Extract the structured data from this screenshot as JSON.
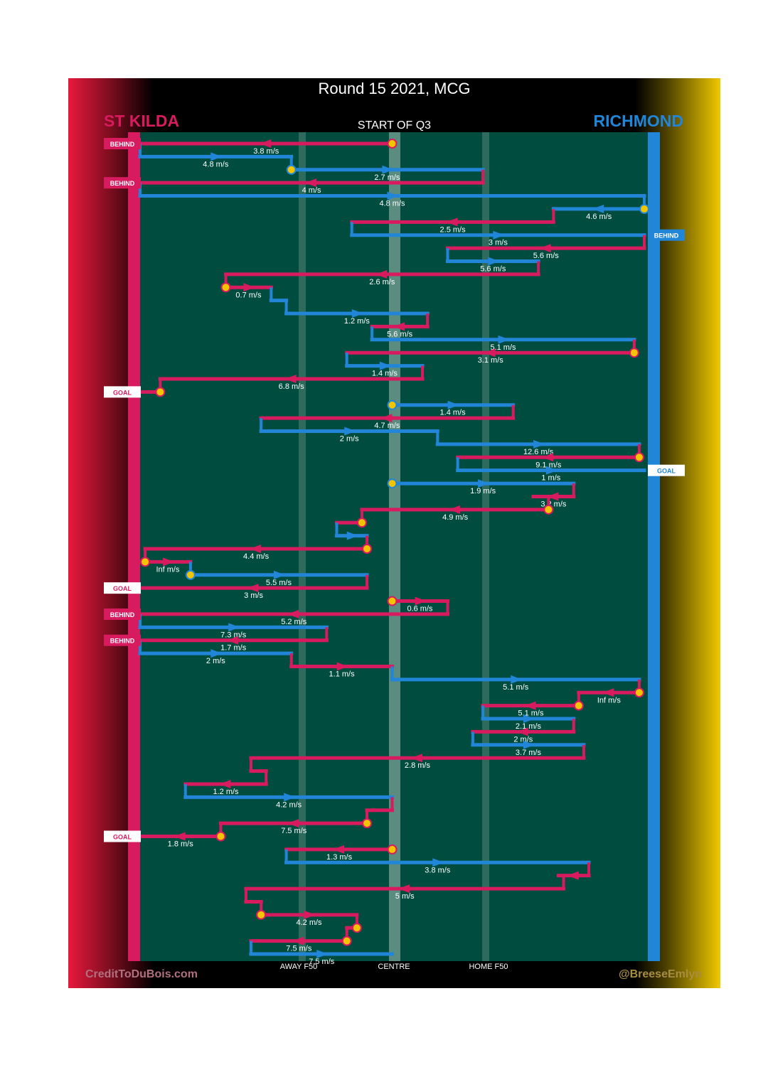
{
  "header": {
    "title": "Round 15 2021, MCG",
    "subtitle": "START OF Q3",
    "home_team": "ST KILDA",
    "away_team": "RICHMOND"
  },
  "footer": {
    "credit_left": "CreditToDuBois.com",
    "credit_right": "@BreeseEmlyn"
  },
  "axis_ticks": {
    "away_f50": "AWAY F50",
    "centre": "CENTRE",
    "home_f50": "HOME F50"
  },
  "colors": {
    "st_kilda": "#d81b5f",
    "richmond": "#2185d8",
    "field": "#004d40",
    "marker": "#f2c500"
  },
  "chart_data": {
    "type": "line",
    "description_note": "",
    "x_axis_ticks": [
      "AWAY F50",
      "CENTRE",
      "HOME F50"
    ],
    "series": [
      {
        "name": "ST KILDA",
        "color": "#d81b5f"
      },
      {
        "name": "RICHMOND",
        "color": "#2185d8"
      }
    ],
    "segments": [
      {
        "team": "S",
        "x1": 0.5,
        "x2": 0.0,
        "speed": "3.8 m/s",
        "start_marker": true
      },
      {
        "team": "R",
        "x1": 0.0,
        "x2": 0.3,
        "speed": "4.8 m/s"
      },
      {
        "team": "R",
        "x1": 0.3,
        "x2": 0.68,
        "speed": "2.7 m/s",
        "start_marker": true
      },
      {
        "team": "S",
        "x1": 0.68,
        "x2": 0.0,
        "speed": "4 m/s"
      },
      {
        "team": "R",
        "x1": 0.0,
        "x2": 1.0,
        "speed": "4.8 m/s"
      },
      {
        "team": "R",
        "x1": 1.0,
        "x2": 0.82,
        "speed": "4.6 m/s",
        "start_marker": true
      },
      {
        "team": "S",
        "x1": 0.82,
        "x2": 0.42,
        "speed": "2.5 m/s"
      },
      {
        "team": "R",
        "x1": 0.42,
        "x2": 1.0,
        "speed": "3 m/s"
      },
      {
        "team": "S",
        "x1": 1.0,
        "x2": 0.61,
        "speed": "5.6 m/s"
      },
      {
        "team": "R",
        "x1": 0.61,
        "x2": 0.79,
        "speed": "5.6 m/s"
      },
      {
        "team": "S",
        "x1": 0.79,
        "x2": 0.17,
        "speed": "2.6 m/s"
      },
      {
        "team": "S",
        "x1": 0.17,
        "x2": 0.26,
        "speed": "0.7 m/s",
        "start_marker": true
      },
      {
        "team": "R",
        "x1": 0.26,
        "x2": 0.29,
        "speed": ""
      },
      {
        "team": "R",
        "x1": 0.29,
        "x2": 0.57,
        "speed": "1.2 m/s"
      },
      {
        "team": "S",
        "x1": 0.57,
        "x2": 0.46,
        "speed": "5.6 m/s"
      },
      {
        "team": "R",
        "x1": 0.46,
        "x2": 0.98,
        "speed": "5.1 m/s"
      },
      {
        "team": "S",
        "x1": 0.98,
        "x2": 0.41,
        "speed": "3.1 m/s",
        "start_marker": true
      },
      {
        "team": "R",
        "x1": 0.41,
        "x2": 0.56,
        "speed": "1.4 m/s"
      },
      {
        "team": "S",
        "x1": 0.56,
        "x2": 0.04,
        "speed": "6.8 m/s"
      },
      {
        "team": "S",
        "x1": 0.04,
        "x2": 0.0,
        "speed": "",
        "start_marker": true
      },
      {
        "team": "R",
        "x1": 0.5,
        "x2": 0.74,
        "speed": "1.4 m/s",
        "start_marker": true
      },
      {
        "team": "S",
        "x1": 0.74,
        "x2": 0.24,
        "speed": "4.7 m/s"
      },
      {
        "team": "R",
        "x1": 0.24,
        "x2": 0.59,
        "speed": "2 m/s"
      },
      {
        "team": "R",
        "x1": 0.59,
        "x2": 0.99,
        "speed": "12.6 m/s"
      },
      {
        "team": "S",
        "x1": 0.99,
        "x2": 0.63,
        "speed": "9.1 m/s",
        "start_marker": true
      },
      {
        "team": "R",
        "x1": 0.63,
        "x2": 1.0,
        "speed": "1 m/s"
      },
      {
        "team": "R",
        "x1": 0.5,
        "x2": 0.86,
        "speed": "1.9 m/s",
        "start_marker": true
      },
      {
        "team": "S",
        "x1": 0.86,
        "x2": 0.78,
        "speed": "3.2 m/s"
      },
      {
        "team": "S",
        "x1": 0.81,
        "x2": 0.44,
        "speed": "4.9 m/s",
        "start_marker": true
      },
      {
        "team": "S",
        "x1": 0.44,
        "x2": 0.39,
        "speed": "",
        "start_marker": true
      },
      {
        "team": "R",
        "x1": 0.39,
        "x2": 0.45,
        "speed": ""
      },
      {
        "team": "S",
        "x1": 0.45,
        "x2": 0.01,
        "speed": "4.4 m/s",
        "start_marker": true
      },
      {
        "team": "S",
        "x1": 0.01,
        "x2": 0.1,
        "speed": "Inf m/s",
        "start_marker": true
      },
      {
        "team": "R",
        "x1": 0.1,
        "x2": 0.45,
        "speed": "5.5 m/s",
        "start_marker": true
      },
      {
        "team": "S",
        "x1": 0.45,
        "x2": 0.0,
        "speed": "3 m/s"
      },
      {
        "team": "S",
        "x1": 0.5,
        "x2": 0.61,
        "speed": "0.6 m/s",
        "start_marker": true
      },
      {
        "team": "S",
        "x1": 0.61,
        "x2": 0.0,
        "speed": "5.2 m/s"
      },
      {
        "team": "R",
        "x1": 0.0,
        "x2": 0.37,
        "speed": "7.3 m/s"
      },
      {
        "team": "S",
        "x1": 0.37,
        "x2": 0.0,
        "speed": "1.7 m/s"
      },
      {
        "team": "R",
        "x1": 0.0,
        "x2": 0.3,
        "speed": "2 m/s"
      },
      {
        "team": "S",
        "x1": 0.3,
        "x2": 0.5,
        "speed": "1.1 m/s"
      },
      {
        "team": "R",
        "x1": 0.5,
        "x2": 0.99,
        "speed": "5.1 m/s"
      },
      {
        "team": "S",
        "x1": 0.99,
        "x2": 0.87,
        "speed": "Inf m/s",
        "start_marker": true
      },
      {
        "team": "S",
        "x1": 0.87,
        "x2": 0.68,
        "speed": "5.1 m/s",
        "start_marker": true
      },
      {
        "team": "R",
        "x1": 0.68,
        "x2": 0.86,
        "speed": "2.1 m/s"
      },
      {
        "team": "S",
        "x1": 0.86,
        "x2": 0.66,
        "speed": "2 m/s"
      },
      {
        "team": "R",
        "x1": 0.66,
        "x2": 0.88,
        "speed": "3.7 m/s"
      },
      {
        "team": "S",
        "x1": 0.88,
        "x2": 0.22,
        "speed": "2.8 m/s"
      },
      {
        "team": "S",
        "x1": 0.22,
        "x2": 0.25,
        "speed": ""
      },
      {
        "team": "S",
        "x1": 0.25,
        "x2": 0.09,
        "speed": "1.2 m/s"
      },
      {
        "team": "R",
        "x1": 0.09,
        "x2": 0.5,
        "speed": "4.2 m/s"
      },
      {
        "team": "S",
        "x1": 0.5,
        "x2": 0.45,
        "speed": ""
      },
      {
        "team": "S",
        "x1": 0.45,
        "x2": 0.16,
        "speed": "7.5 m/s",
        "start_marker": true
      },
      {
        "team": "S",
        "x1": 0.16,
        "x2": 0.0,
        "speed": "1.8 m/s",
        "start_marker": true
      },
      {
        "team": "S",
        "x1": 0.5,
        "x2": 0.29,
        "speed": "1.3 m/s",
        "start_marker": true
      },
      {
        "team": "R",
        "x1": 0.29,
        "x2": 0.89,
        "speed": "3.8 m/s"
      },
      {
        "team": "S",
        "x1": 0.89,
        "x2": 0.83,
        "speed": ""
      },
      {
        "team": "S",
        "x1": 0.84,
        "x2": 0.21,
        "speed": "5 m/s"
      },
      {
        "team": "S",
        "x1": 0.21,
        "x2": 0.24,
        "speed": ""
      },
      {
        "team": "S",
        "x1": 0.24,
        "x2": 0.43,
        "speed": "4.2 m/s",
        "start_marker": true
      },
      {
        "team": "S",
        "x1": 0.43,
        "x2": 0.41,
        "speed": "",
        "start_marker": true
      },
      {
        "team": "S",
        "x1": 0.41,
        "x2": 0.22,
        "speed": "7.5 m/s",
        "start_marker": true
      },
      {
        "team": "R",
        "x1": 0.22,
        "x2": 0.5,
        "speed": "7.5 m/s"
      }
    ],
    "outcomes": [
      {
        "label": "BEHIND",
        "team": "S",
        "after_segment": 0
      },
      {
        "label": "BEHIND",
        "team": "S",
        "after_segment": 3
      },
      {
        "label": "BEHIND",
        "team": "R",
        "after_segment": 7
      },
      {
        "label": "GOAL",
        "team": "S",
        "after_segment": 19
      },
      {
        "label": "GOAL",
        "team": "R",
        "after_segment": 25
      },
      {
        "label": "GOAL",
        "team": "S",
        "after_segment": 34
      },
      {
        "label": "BEHIND",
        "team": "S",
        "after_segment": 36
      },
      {
        "label": "BEHIND",
        "team": "S",
        "after_segment": 38
      },
      {
        "label": "GOAL",
        "team": "S",
        "after_segment": 53
      }
    ]
  }
}
